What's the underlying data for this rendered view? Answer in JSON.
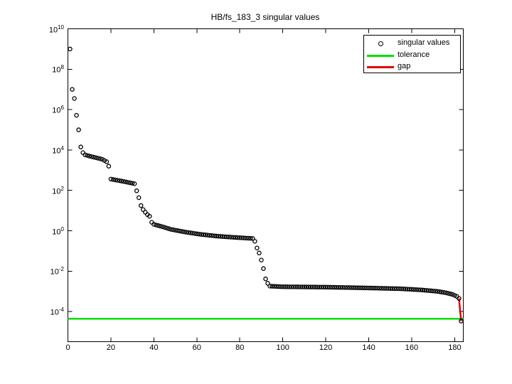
{
  "figure": {
    "background_color": "#ffffff",
    "axis_color": "#000000"
  },
  "chart_data": {
    "type": "scatter",
    "title": "HB/fs_183_3 singular values",
    "xlabel": "",
    "ylabel": "",
    "x_scale": "linear",
    "y_scale": "log10",
    "xlim": [
      0,
      184
    ],
    "ylim_log10": [
      -5.49,
      10
    ],
    "x_ticks": [
      0,
      20,
      40,
      60,
      80,
      100,
      120,
      140,
      160,
      180
    ],
    "y_tick_exponents": [
      10,
      8,
      6,
      4,
      2,
      0,
      -2,
      -4
    ],
    "grid": false,
    "n_points": 183,
    "legend": {
      "position": "northeast",
      "entries": [
        {
          "label": "singular values",
          "marker": "open-circle",
          "color": "#000000"
        },
        {
          "label": "tolerance",
          "marker": "line",
          "color": "#00e000"
        },
        {
          "label": "gap",
          "marker": "line",
          "color": "#e00000"
        }
      ]
    },
    "series": [
      {
        "name": "singular values",
        "type": "scatter",
        "marker": "open-circle",
        "color": "#000000",
        "anchor_points_log10": [
          [
            1,
            9.0
          ],
          [
            2,
            7.0
          ],
          [
            3,
            6.55
          ],
          [
            4,
            5.72
          ],
          [
            5,
            5.0
          ],
          [
            6,
            4.15
          ],
          [
            7,
            3.87
          ],
          [
            8,
            3.76
          ],
          [
            10,
            3.7
          ],
          [
            13,
            3.62
          ],
          [
            16,
            3.54
          ],
          [
            18,
            3.42
          ],
          [
            19,
            3.2
          ],
          [
            20,
            2.56
          ],
          [
            23,
            2.5
          ],
          [
            27,
            2.42
          ],
          [
            31,
            2.33
          ],
          [
            32,
            1.98
          ],
          [
            33,
            1.64
          ],
          [
            34,
            1.25
          ],
          [
            35,
            1.05
          ],
          [
            36,
            0.92
          ],
          [
            37,
            0.8
          ],
          [
            38,
            0.72
          ],
          [
            39,
            0.42
          ],
          [
            40,
            0.32
          ],
          [
            44,
            0.2
          ],
          [
            48,
            0.07
          ],
          [
            55,
            -0.07
          ],
          [
            62,
            -0.18
          ],
          [
            70,
            -0.27
          ],
          [
            78,
            -0.33
          ],
          [
            86,
            -0.38
          ],
          [
            87,
            -0.52
          ],
          [
            88,
            -0.85
          ],
          [
            89,
            -1.1
          ],
          [
            90,
            -1.45
          ],
          [
            91,
            -1.87
          ],
          [
            92,
            -2.38
          ],
          [
            93,
            -2.6
          ],
          [
            94,
            -2.74
          ],
          [
            100,
            -2.77
          ],
          [
            120,
            -2.79
          ],
          [
            140,
            -2.83
          ],
          [
            155,
            -2.87
          ],
          [
            165,
            -2.93
          ],
          [
            172,
            -3.0
          ],
          [
            176,
            -3.07
          ],
          [
            179,
            -3.15
          ],
          [
            181,
            -3.25
          ],
          [
            182,
            -3.35
          ],
          [
            183,
            -4.47
          ]
        ]
      },
      {
        "name": "tolerance",
        "type": "hline",
        "color": "#00e000",
        "value": 4.4e-05
      },
      {
        "name": "gap",
        "type": "segment",
        "color": "#e00000",
        "connects_point_indices": [
          182,
          183
        ]
      }
    ]
  }
}
